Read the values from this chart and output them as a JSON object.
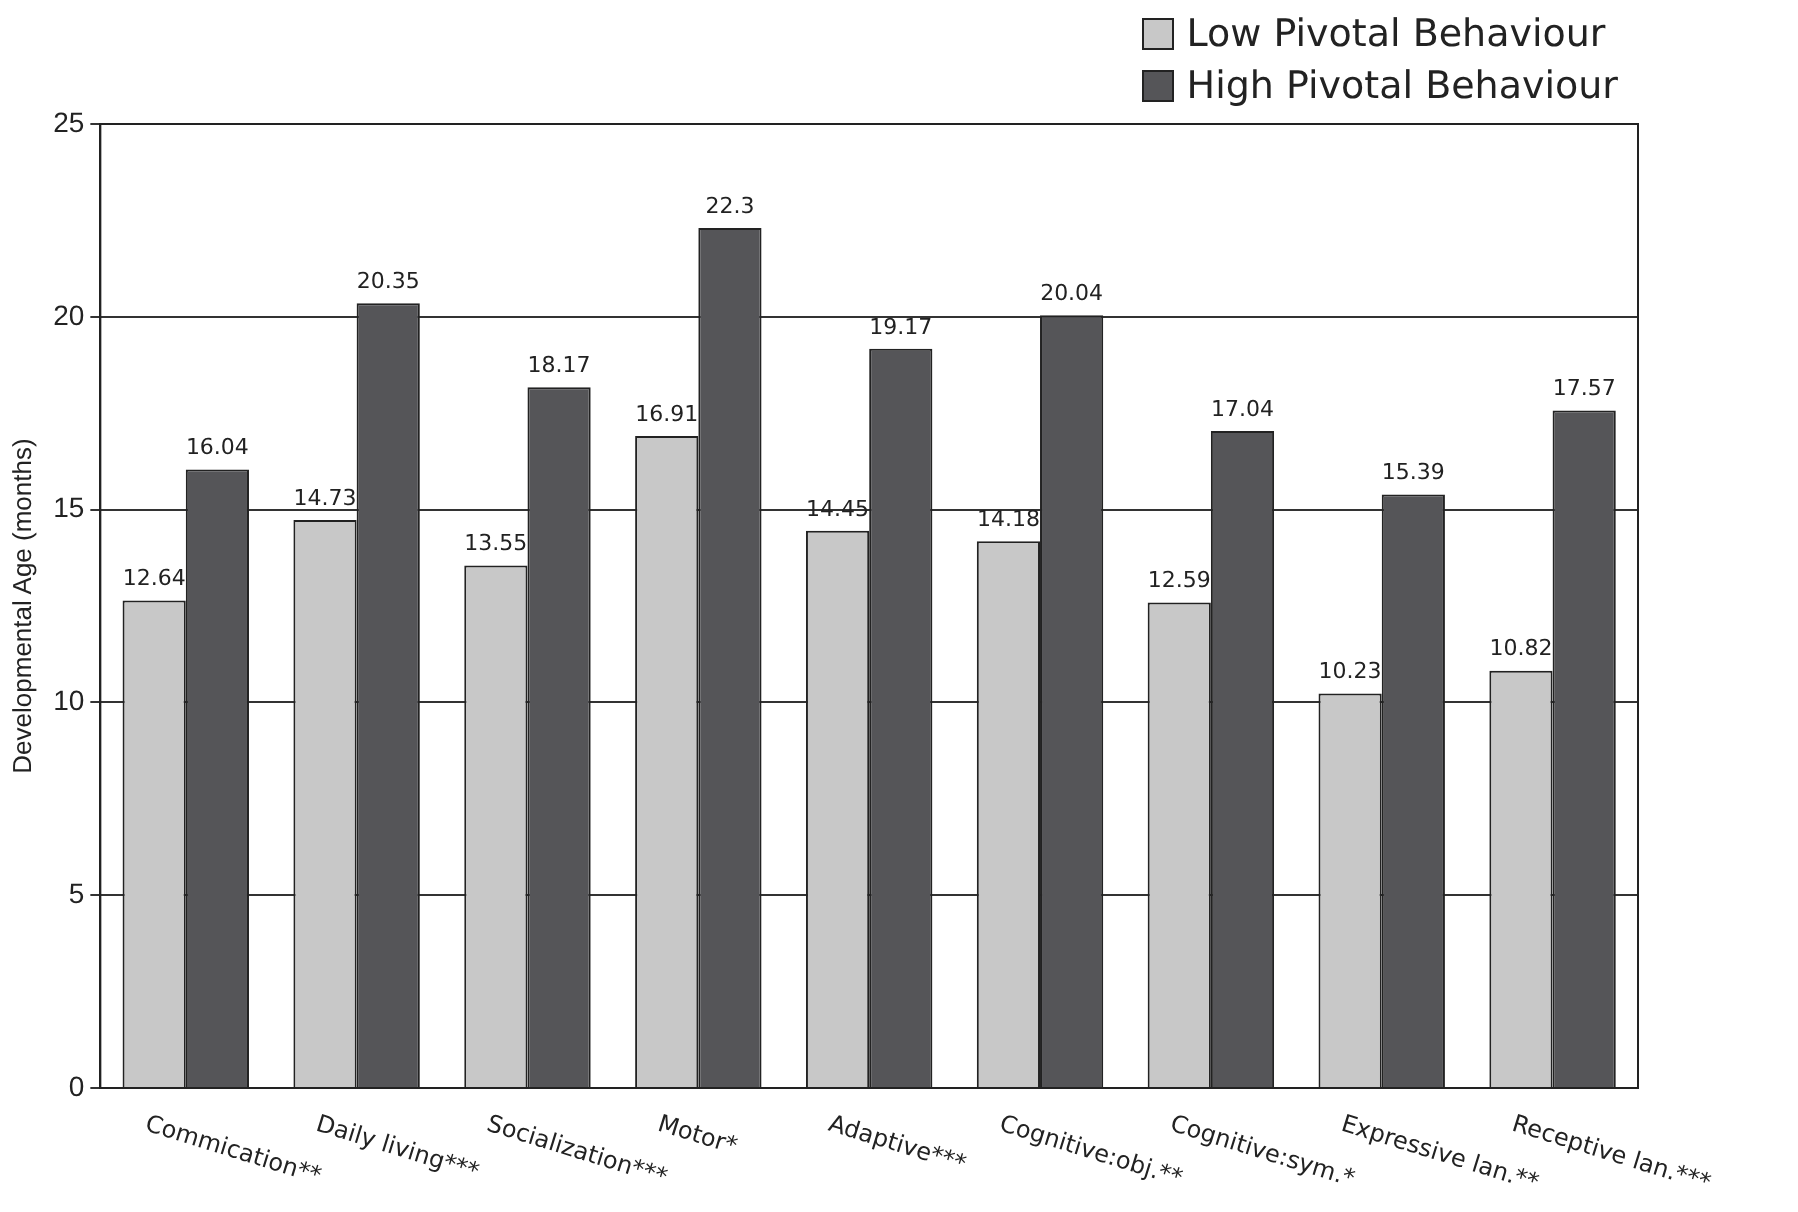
{
  "chart_data": {
    "type": "bar",
    "ylabel": "Developmental Age (months)",
    "categories": [
      "Commication**",
      "Daily living***",
      "Socialization***",
      "Motor*",
      "Adaptive***",
      "Cognitive:obj.**",
      "Cognitive:sym.*",
      "Expressive lan.**",
      "Receptive lan.***"
    ],
    "series": [
      {
        "name": "Low Pivotal Behaviour",
        "color": "#c8c8c8",
        "values": [
          12.64,
          14.73,
          13.55,
          16.91,
          14.45,
          14.18,
          12.59,
          10.23,
          10.82
        ]
      },
      {
        "name": "High Pivotal Behaviour",
        "color": "#555558",
        "values": [
          16.04,
          20.35,
          18.17,
          22.3,
          19.17,
          20.04,
          17.04,
          15.39,
          17.57
        ]
      }
    ],
    "ylim": [
      0,
      25
    ],
    "yticks": [
      0,
      5,
      10,
      15,
      20,
      25
    ],
    "grid": "y",
    "legend": "top right",
    "data_labels": true
  }
}
